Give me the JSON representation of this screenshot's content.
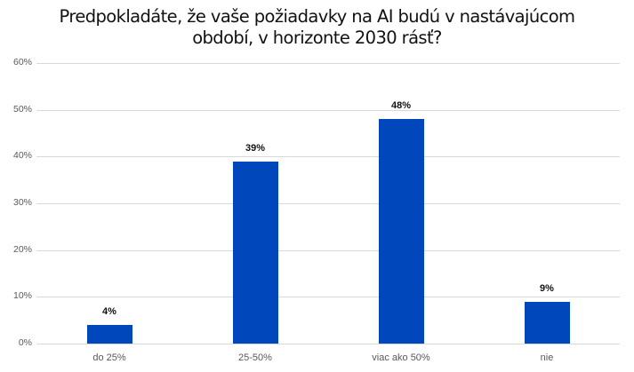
{
  "chart_data": {
    "type": "bar",
    "title": "Predpokladáte, že vaše požiadavky na AI budú v nastávajúcom období,  v horizonte 2030 rásť?",
    "title_lines": [
      "Predpokladáte, že vaše požiadavky na AI budú v nastávajúcom",
      "období,  v horizonte 2030 rásť?"
    ],
    "categories": [
      "do 25%",
      "25-50%",
      "viac ako 50%",
      "nie"
    ],
    "values": [
      4,
      39,
      48,
      9
    ],
    "data_labels": [
      "4%",
      "39%",
      "48%",
      "9%"
    ],
    "xlabel": "",
    "ylabel": "",
    "ylim": [
      0,
      60
    ],
    "yticks": [
      "0%",
      "10%",
      "20%",
      "30%",
      "40%",
      "50%",
      "60%"
    ],
    "grid": true,
    "legend": "none",
    "bar_color": "#0047BB"
  }
}
